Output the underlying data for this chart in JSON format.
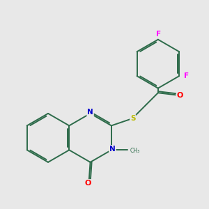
{
  "bg_color": "#e8e8e8",
  "bond_color": "#2d6b4a",
  "N_color": "#0000cc",
  "O_color": "#ff0000",
  "S_color": "#bbbb00",
  "F_color": "#ff00ff",
  "lw": 1.4,
  "dbo": 0.055,
  "r_ring": 0.95,
  "bx": 2.3,
  "by": 4.2,
  "xlim": [
    0.5,
    8.5
  ],
  "ylim": [
    1.5,
    9.5
  ]
}
